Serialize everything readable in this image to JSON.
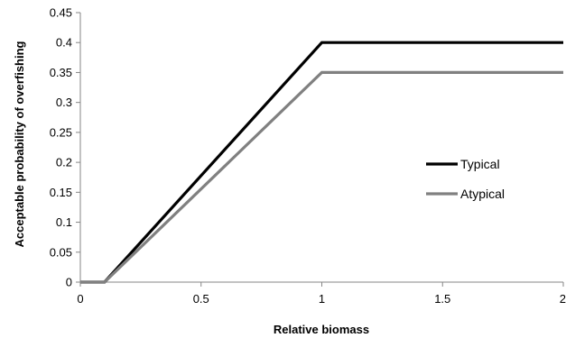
{
  "chart_data": {
    "type": "line",
    "title": "",
    "xlabel": "Relative biomass",
    "ylabel": "Acceptable probability of overfishing",
    "xlim": [
      0,
      2
    ],
    "ylim": [
      0,
      0.45
    ],
    "x_ticks": [
      "0",
      "0.5",
      "1",
      "1.5",
      "2"
    ],
    "y_ticks": [
      "0",
      "0.05",
      "0.1",
      "0.15",
      "0.2",
      "0.25",
      "0.3",
      "0.35",
      "0.4",
      "0.45"
    ],
    "grid": false,
    "legend_position": "right",
    "series": [
      {
        "name": "Typical",
        "color": "#000000",
        "x": [
          0,
          0.1,
          1,
          2
        ],
        "y": [
          0,
          0,
          0.4,
          0.4
        ]
      },
      {
        "name": "Atypical",
        "color": "#808080",
        "x": [
          0,
          0.1,
          1,
          2
        ],
        "y": [
          0,
          0,
          0.35,
          0.35
        ]
      }
    ]
  }
}
